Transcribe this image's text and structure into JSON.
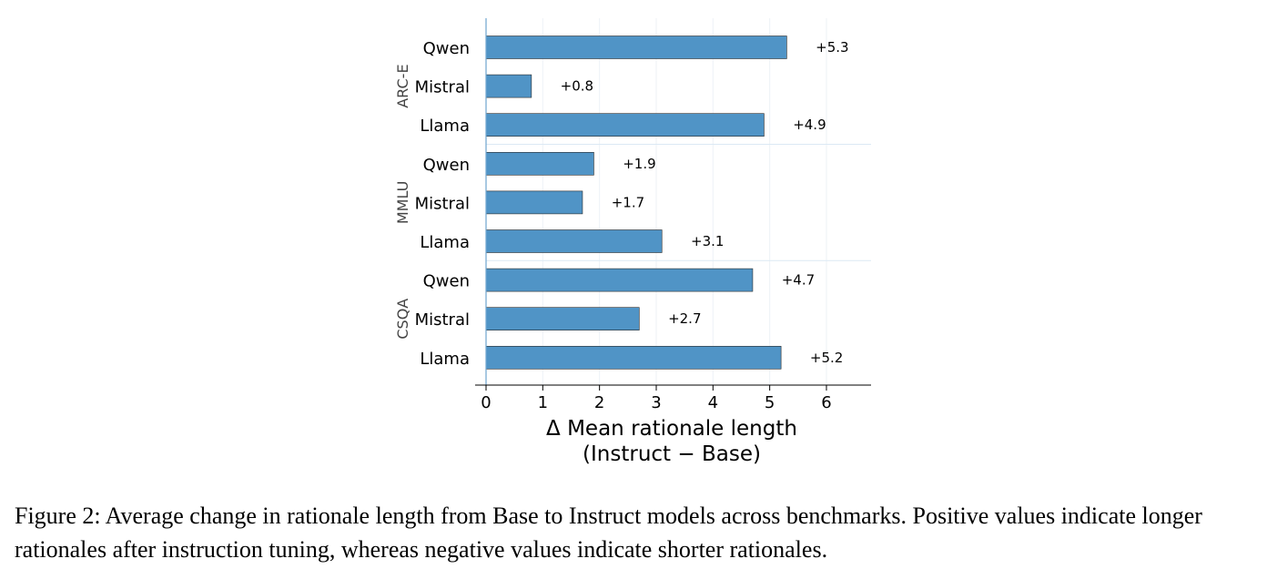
{
  "chart_data": {
    "type": "bar",
    "orientation": "horizontal",
    "groups": [
      {
        "name": "ARC-E",
        "bars": [
          {
            "label": "Qwen",
            "value": 5.3,
            "text": "+5.3"
          },
          {
            "label": "Mistral",
            "value": 0.8,
            "text": "+0.8"
          },
          {
            "label": "Llama",
            "value": 4.9,
            "text": "+4.9"
          }
        ]
      },
      {
        "name": "MMLU",
        "bars": [
          {
            "label": "Qwen",
            "value": 1.9,
            "text": "+1.9"
          },
          {
            "label": "Mistral",
            "value": 1.7,
            "text": "+1.7"
          },
          {
            "label": "Llama",
            "value": 3.1,
            "text": "+3.1"
          }
        ]
      },
      {
        "name": "CSQA",
        "bars": [
          {
            "label": "Qwen",
            "value": 4.7,
            "text": "+4.7"
          },
          {
            "label": "Mistral",
            "value": 2.7,
            "text": "+2.7"
          },
          {
            "label": "Llama",
            "value": 5.2,
            "text": "+5.2"
          }
        ]
      }
    ],
    "xlabel_line1": "Δ Mean rationale length",
    "xlabel_line2": "(Instruct − Base)",
    "xticks": [
      "0",
      "1",
      "2",
      "3",
      "4",
      "5",
      "6"
    ],
    "xlim": [
      -0.2,
      6.8
    ],
    "grid": "vertical, faint",
    "bar_color": "#5094c6"
  },
  "caption": "Figure 2: Average change in rationale length from Base to Instruct models across benchmarks. Positive values indicate longer rationales after instruction tuning, whereas negative values indicate shorter rationales."
}
